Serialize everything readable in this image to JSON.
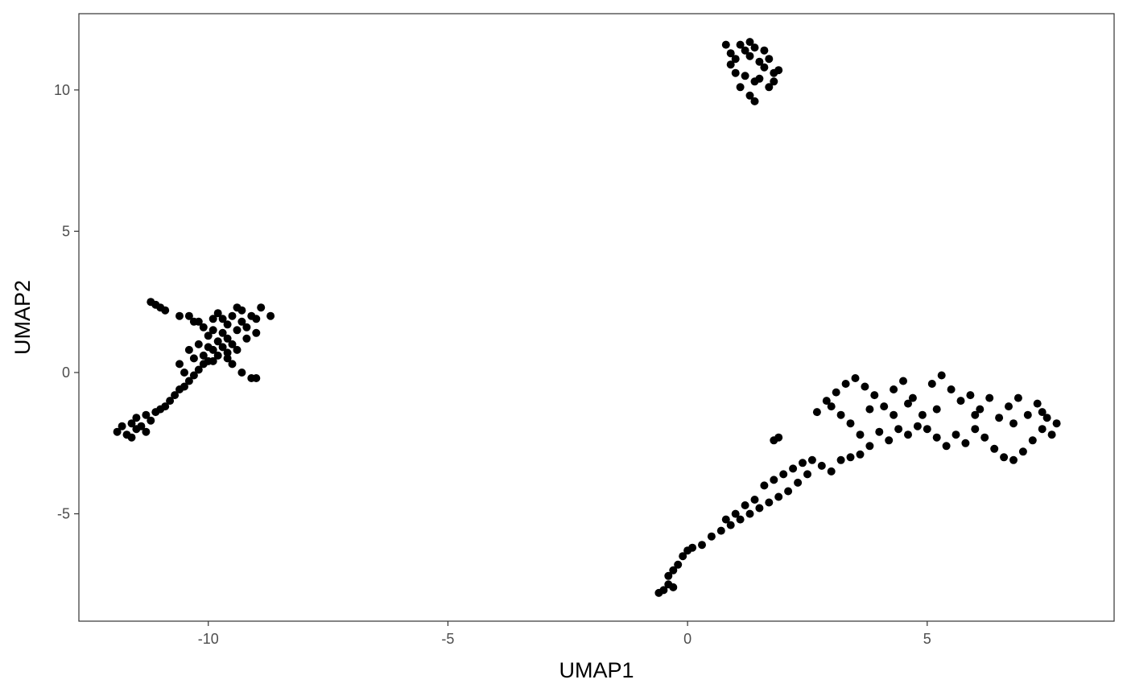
{
  "chart_data": {
    "type": "scatter",
    "title": "",
    "xlabel": "UMAP1",
    "ylabel": "UMAP2",
    "xlim": [
      -12.7,
      8.9
    ],
    "ylim": [
      -8.8,
      12.7
    ],
    "x_ticks": [
      -10,
      -5,
      0,
      5
    ],
    "x_tick_labels": [
      "-10",
      "-5",
      "0",
      "5"
    ],
    "y_ticks": [
      -5,
      0,
      5,
      10
    ],
    "y_tick_labels": [
      "-5",
      "0",
      "5",
      "10"
    ],
    "grid": false,
    "legend": "none",
    "point_color": "#000000",
    "series": [
      {
        "values": [
          [
            -11.9,
            -2.1
          ],
          [
            -11.8,
            -1.9
          ],
          [
            -11.7,
            -2.2
          ],
          [
            -11.6,
            -1.8
          ],
          [
            -11.5,
            -2.0
          ],
          [
            -11.5,
            -1.6
          ],
          [
            -11.4,
            -1.9
          ],
          [
            -11.3,
            -1.5
          ],
          [
            -11.2,
            -1.7
          ],
          [
            -11.6,
            -2.3
          ],
          [
            -11.3,
            -2.1
          ],
          [
            -11.1,
            -1.4
          ],
          [
            -11.0,
            -1.3
          ],
          [
            -10.9,
            -1.2
          ],
          [
            -10.8,
            -1.0
          ],
          [
            -10.7,
            -0.8
          ],
          [
            -10.6,
            -0.6
          ],
          [
            -10.5,
            -0.5
          ],
          [
            -10.4,
            -0.3
          ],
          [
            -10.3,
            -0.1
          ],
          [
            -10.2,
            0.1
          ],
          [
            -10.1,
            0.3
          ],
          [
            -10.3,
            0.5
          ],
          [
            -10.4,
            0.8
          ],
          [
            -10.1,
            0.6
          ],
          [
            -10.0,
            0.4
          ],
          [
            -10.2,
            1.0
          ],
          [
            -9.9,
            0.8
          ],
          [
            -9.8,
            1.1
          ],
          [
            -10.0,
            1.3
          ],
          [
            -10.1,
            1.6
          ],
          [
            -9.9,
            1.5
          ],
          [
            -9.7,
            1.4
          ],
          [
            -9.6,
            1.2
          ],
          [
            -9.8,
            0.6
          ],
          [
            -9.5,
            1.0
          ],
          [
            -9.6,
            1.7
          ],
          [
            -9.4,
            1.5
          ],
          [
            -9.3,
            1.8
          ],
          [
            -9.2,
            1.6
          ],
          [
            -9.1,
            2.0
          ],
          [
            -9.0,
            1.9
          ],
          [
            -9.3,
            2.2
          ],
          [
            -9.5,
            2.0
          ],
          [
            -9.7,
            1.9
          ],
          [
            -9.8,
            2.1
          ],
          [
            -8.9,
            2.3
          ],
          [
            -8.7,
            2.0
          ],
          [
            -9.4,
            2.3
          ],
          [
            -9.2,
            1.2
          ],
          [
            -9.6,
            0.7
          ],
          [
            -9.9,
            0.4
          ],
          [
            -10.5,
            0.0
          ],
          [
            -10.6,
            0.3
          ],
          [
            -9.9,
            1.9
          ],
          [
            -10.2,
            1.8
          ],
          [
            -11.2,
            2.5
          ],
          [
            -11.1,
            2.4
          ],
          [
            -11.0,
            2.3
          ],
          [
            -10.9,
            2.2
          ],
          [
            -10.6,
            2.0
          ],
          [
            -10.4,
            2.0
          ],
          [
            -10.3,
            1.8
          ],
          [
            -9.5,
            0.3
          ],
          [
            -9.3,
            0.0
          ],
          [
            -9.1,
            -0.2
          ],
          [
            -9.0,
            -0.2
          ],
          [
            -9.6,
            0.5
          ],
          [
            -10.0,
            0.9
          ],
          [
            -9.7,
            0.9
          ],
          [
            -9.4,
            0.8
          ],
          [
            -9.0,
            1.4
          ],
          [
            0.8,
            11.6
          ],
          [
            0.9,
            11.3
          ],
          [
            1.0,
            11.1
          ],
          [
            1.1,
            11.6
          ],
          [
            1.2,
            11.4
          ],
          [
            1.3,
            11.2
          ],
          [
            1.4,
            11.5
          ],
          [
            1.5,
            11.0
          ],
          [
            1.6,
            10.8
          ],
          [
            1.7,
            11.1
          ],
          [
            1.8,
            10.6
          ],
          [
            1.9,
            10.7
          ],
          [
            1.2,
            10.5
          ],
          [
            1.4,
            10.3
          ],
          [
            1.3,
            9.8
          ],
          [
            1.4,
            9.6
          ],
          [
            1.0,
            10.6
          ],
          [
            1.1,
            10.1
          ],
          [
            1.5,
            10.4
          ],
          [
            1.7,
            10.1
          ],
          [
            1.6,
            11.4
          ],
          [
            1.3,
            11.7
          ],
          [
            0.9,
            10.9
          ],
          [
            1.8,
            10.3
          ],
          [
            -0.5,
            -7.7
          ],
          [
            -0.4,
            -7.5
          ],
          [
            -0.4,
            -7.2
          ],
          [
            -0.3,
            -7.0
          ],
          [
            -0.2,
            -6.8
          ],
          [
            -0.1,
            -6.5
          ],
          [
            0.0,
            -6.3
          ],
          [
            0.1,
            -6.2
          ],
          [
            0.3,
            -6.1
          ],
          [
            0.5,
            -5.8
          ],
          [
            0.7,
            -5.6
          ],
          [
            0.9,
            -5.4
          ],
          [
            1.1,
            -5.2
          ],
          [
            1.3,
            -5.0
          ],
          [
            1.5,
            -4.8
          ],
          [
            1.7,
            -4.6
          ],
          [
            1.9,
            -4.4
          ],
          [
            2.1,
            -4.2
          ],
          [
            1.2,
            -4.7
          ],
          [
            1.4,
            -4.5
          ],
          [
            1.6,
            -4.0
          ],
          [
            1.8,
            -3.8
          ],
          [
            2.0,
            -3.6
          ],
          [
            2.2,
            -3.4
          ],
          [
            2.4,
            -3.2
          ],
          [
            2.6,
            -3.1
          ],
          [
            2.8,
            -3.3
          ],
          [
            3.0,
            -3.5
          ],
          [
            2.5,
            -3.6
          ],
          [
            2.3,
            -3.9
          ],
          [
            1.9,
            -2.3
          ],
          [
            1.8,
            -2.4
          ],
          [
            -0.6,
            -7.8
          ],
          [
            -0.3,
            -7.6
          ],
          [
            1.0,
            -5.0
          ],
          [
            0.8,
            -5.2
          ],
          [
            2.7,
            -1.4
          ],
          [
            2.9,
            -1.0
          ],
          [
            3.1,
            -0.7
          ],
          [
            3.3,
            -0.4
          ],
          [
            3.5,
            -0.2
          ],
          [
            3.7,
            -0.5
          ],
          [
            3.9,
            -0.8
          ],
          [
            4.1,
            -1.2
          ],
          [
            4.3,
            -0.6
          ],
          [
            4.5,
            -0.3
          ],
          [
            4.7,
            -0.9
          ],
          [
            4.9,
            -1.5
          ],
          [
            5.1,
            -0.4
          ],
          [
            5.3,
            -0.1
          ],
          [
            5.5,
            -0.6
          ],
          [
            5.7,
            -1.0
          ],
          [
            5.9,
            -0.8
          ],
          [
            6.1,
            -1.3
          ],
          [
            6.3,
            -0.9
          ],
          [
            6.5,
            -1.6
          ],
          [
            6.7,
            -1.2
          ],
          [
            6.9,
            -0.9
          ],
          [
            7.1,
            -1.5
          ],
          [
            7.3,
            -1.1
          ],
          [
            7.5,
            -1.6
          ],
          [
            7.7,
            -1.8
          ],
          [
            7.6,
            -2.2
          ],
          [
            7.4,
            -2.0
          ],
          [
            7.2,
            -2.4
          ],
          [
            7.0,
            -2.8
          ],
          [
            6.8,
            -3.1
          ],
          [
            6.6,
            -3.0
          ],
          [
            6.4,
            -2.7
          ],
          [
            6.2,
            -2.3
          ],
          [
            6.0,
            -2.0
          ],
          [
            5.8,
            -2.5
          ],
          [
            5.6,
            -2.2
          ],
          [
            5.4,
            -2.6
          ],
          [
            5.2,
            -2.3
          ],
          [
            5.0,
            -2.0
          ],
          [
            4.8,
            -1.9
          ],
          [
            4.6,
            -2.2
          ],
          [
            4.4,
            -2.0
          ],
          [
            4.2,
            -2.4
          ],
          [
            4.0,
            -2.1
          ],
          [
            3.8,
            -2.6
          ],
          [
            3.6,
            -2.2
          ],
          [
            3.4,
            -1.8
          ],
          [
            3.2,
            -1.5
          ],
          [
            3.0,
            -1.2
          ],
          [
            3.6,
            -2.9
          ],
          [
            3.4,
            -3.0
          ],
          [
            3.2,
            -3.1
          ],
          [
            4.6,
            -1.1
          ],
          [
            5.2,
            -1.3
          ],
          [
            6.0,
            -1.5
          ],
          [
            6.8,
            -1.8
          ],
          [
            7.4,
            -1.4
          ],
          [
            3.8,
            -1.3
          ],
          [
            4.3,
            -1.5
          ]
        ]
      }
    ]
  }
}
